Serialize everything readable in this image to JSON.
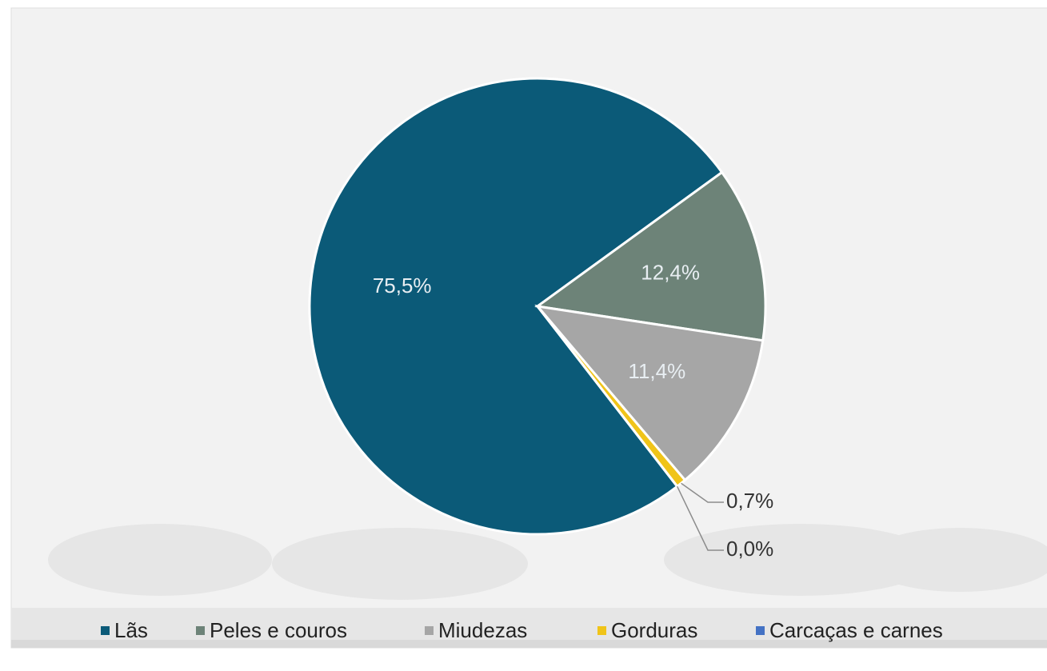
{
  "chart_data": {
    "type": "pie",
    "categories": [
      "Lãs",
      "Peles e couros",
      "Miudezas",
      "Gorduras",
      "Carcaças e carnes"
    ],
    "values": [
      75.5,
      12.4,
      11.4,
      0.7,
      0.0
    ],
    "value_labels": [
      "75,5%",
      "12,4%",
      "11,4%",
      "0,7%",
      "0,0%"
    ],
    "colors": [
      "#0b5a78",
      "#6d8378",
      "#a6a6a6",
      "#f0c419",
      "#4472c4"
    ],
    "legend": "bottom"
  }
}
